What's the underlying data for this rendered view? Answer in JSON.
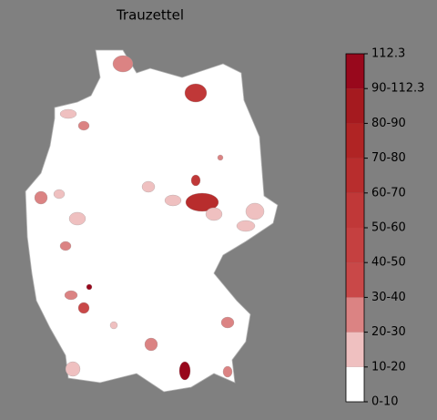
{
  "chart_data": {
    "type": "choropleth",
    "title": "Trauzettel",
    "regions": {
      "values": [
        25,
        55,
        15,
        25,
        15,
        15,
        60,
        15,
        15,
        15,
        55,
        25,
        15,
        15,
        25,
        25,
        100,
        30,
        15,
        25,
        25,
        100,
        15,
        25,
        25
      ]
    },
    "colorbar": {
      "boundaries": [
        0,
        10,
        20,
        30,
        40,
        50,
        60,
        70,
        80,
        90,
        112.3
      ],
      "colors": [
        "#ffffff",
        "#efc0c0",
        "#db8383",
        "#c94848",
        "#c54040",
        "#c03838",
        "#b82d2d",
        "#b02424",
        "#a51a1f",
        "#98081c"
      ],
      "ticks": [
        {
          "value": 0,
          "label": "0-10"
        },
        {
          "value": 10,
          "label": "10-20"
        },
        {
          "value": 20,
          "label": "20-30"
        },
        {
          "value": 30,
          "label": "30-40"
        },
        {
          "value": 40,
          "label": "40-50"
        },
        {
          "value": 50,
          "label": "50-60"
        },
        {
          "value": 60,
          "label": "60-70"
        },
        {
          "value": 70,
          "label": "70-80"
        },
        {
          "value": 80,
          "label": "80-90"
        },
        {
          "value": 90,
          "label": "90-112.3"
        },
        112.3
      ]
    }
  }
}
